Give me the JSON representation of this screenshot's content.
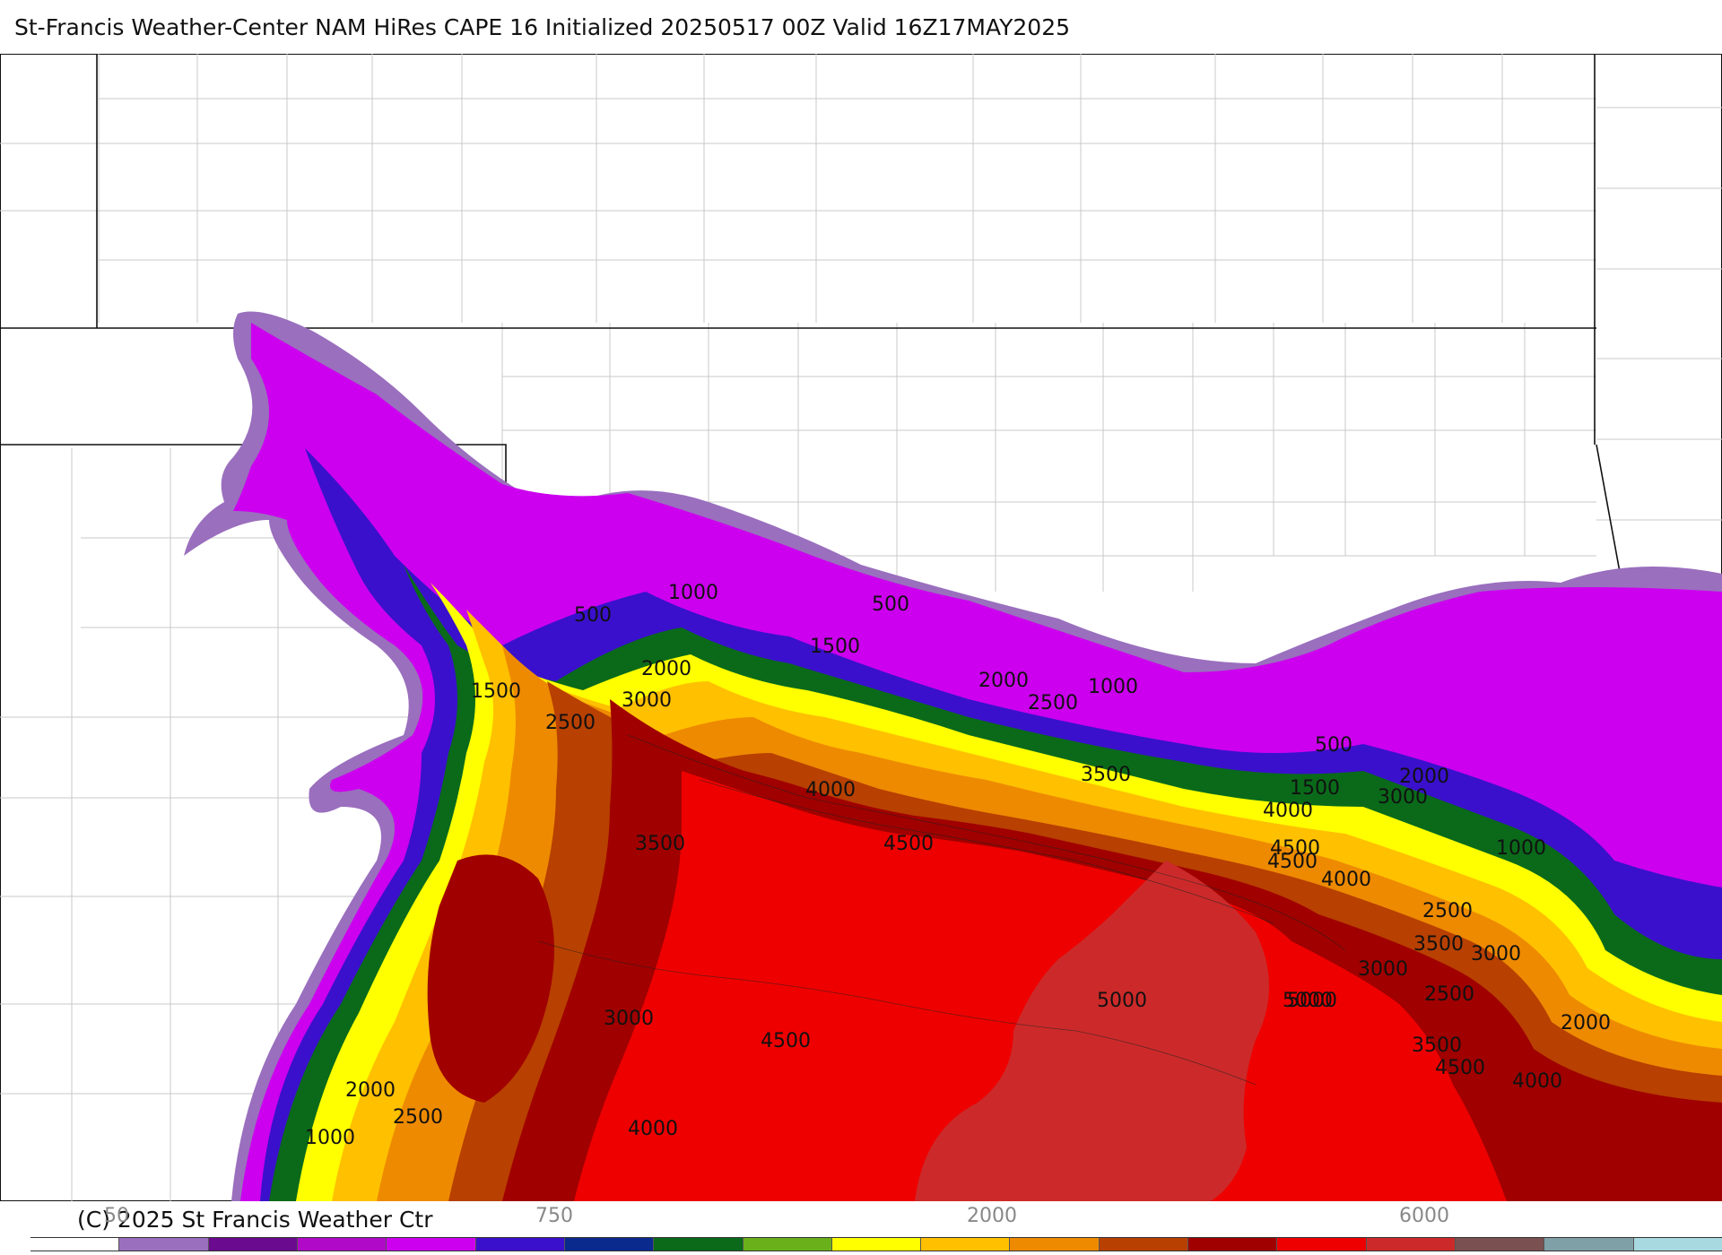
{
  "header": {
    "title": "St-Francis Weather-Center NAM HiRes CAPE  16 Initialized 20250517 00Z Valid 16Z17MAY2025"
  },
  "footer": {
    "credit": "(C) 2025 St Francis Weather Ctr"
  },
  "colorbar": {
    "colors": [
      "#ffffff",
      "#9a6fbe",
      "#6a0a8e",
      "#b00ac8",
      "#cc00ee",
      "#3a10cc",
      "#0a2a8e",
      "#0a6a1a",
      "#6ab01a",
      "#ffff00",
      "#ffc000",
      "#ee8a00",
      "#b84000",
      "#a00000",
      "#ee0000",
      "#cc2a2a",
      "#7a5050",
      "#80a0a8",
      "#a8d8e0"
    ],
    "tick_labels": [
      "50",
      "750",
      "2000",
      "6000"
    ]
  },
  "map": {
    "field": "CAPE",
    "contour_labels": [
      "500",
      "1000",
      "1500",
      "2000",
      "2500",
      "3000",
      "3500",
      "4000",
      "4500",
      "5000",
      "500",
      "1000",
      "1500",
      "2000",
      "2500",
      "3000",
      "3500",
      "4000",
      "4500",
      "5000",
      "500",
      "1000",
      "1500",
      "2000",
      "2500",
      "3000",
      "3500",
      "4000",
      "4500",
      "2000",
      "2500",
      "3000",
      "3500",
      "4000",
      "4500",
      "1000",
      "2000",
      "2500",
      "3000",
      "4000",
      "4500",
      "5000"
    ]
  }
}
